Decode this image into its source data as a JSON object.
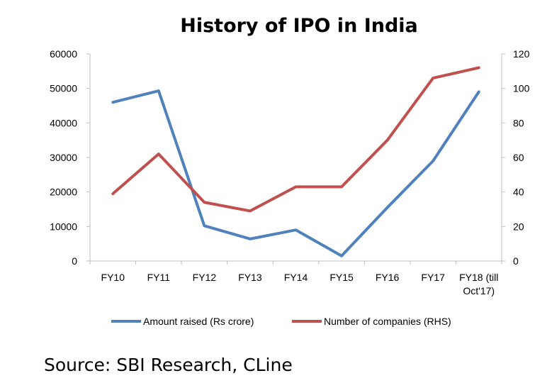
{
  "chart_data": {
    "type": "line",
    "title": "History of IPO in India",
    "categories": [
      "FY10",
      "FY11",
      "FY12",
      "FY13",
      "FY14",
      "FY15",
      "FY16",
      "FY17",
      "FY18 (till Oct'17)"
    ],
    "category_lines": [
      [
        "FY10"
      ],
      [
        "FY11"
      ],
      [
        "FY12"
      ],
      [
        "FY13"
      ],
      [
        "FY14"
      ],
      [
        "FY15"
      ],
      [
        "FY16"
      ],
      [
        "FY17"
      ],
      [
        "FY18 (till",
        "Oct'17)"
      ]
    ],
    "y_left": {
      "min": 0,
      "max": 60000,
      "ticks": [
        0,
        10000,
        20000,
        30000,
        40000,
        50000,
        60000
      ]
    },
    "y_right": {
      "min": 0,
      "max": 120,
      "ticks": [
        0,
        20,
        40,
        60,
        80,
        100,
        120
      ]
    },
    "grid": false,
    "legend_position": "bottom",
    "series": [
      {
        "name": "Amount raised (Rs crore)",
        "axis": "left",
        "color": "#4f81bd",
        "values": [
          46000,
          49300,
          10200,
          6400,
          9000,
          1500,
          15500,
          29000,
          49000
        ]
      },
      {
        "name": "Number of companies (RHS)",
        "axis": "right",
        "color": "#c0504d",
        "values": [
          39,
          62,
          34,
          29,
          43,
          43,
          70,
          106,
          112
        ]
      }
    ]
  },
  "source": "Source: SBI Research, CLine"
}
